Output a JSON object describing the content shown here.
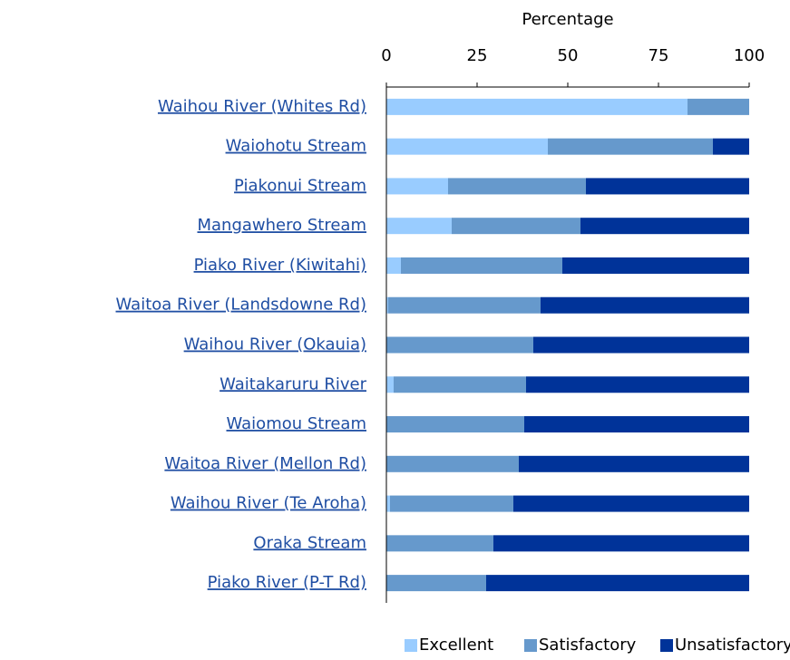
{
  "chart_data": {
    "type": "stacked_bar_horizontal",
    "x_label": "Percentage",
    "categories": [
      "Waihou River (Whites Rd)",
      "Waiohotu Stream",
      "Piakonui Stream",
      "Mangawhero Stream",
      "Piako River (Kiwitahi)",
      "Waitoa River (Landsdowne Rd)",
      "Waihou River (Okauia)",
      "Waitakaruru River",
      "Waiomou Stream",
      "Waitoa River (Mellon Rd)",
      "Waihou River (Te Aroha)",
      "Oraka Stream",
      "Piako River (P-T Rd)"
    ],
    "series": [
      {
        "name": "Excellent",
        "color": "#99ccff",
        "values": [
          83,
          44.5,
          17,
          18,
          4,
          0.5,
          0,
          2,
          0,
          0,
          1,
          0,
          0
        ]
      },
      {
        "name": "Satisfactory",
        "color": "#6699cc",
        "values": [
          17,
          45.5,
          38,
          35.5,
          44.5,
          42,
          40.5,
          36.5,
          38,
          36.5,
          34,
          29.5,
          27.5
        ]
      },
      {
        "name": "Unsatisfactory",
        "color": "#003399",
        "values": [
          0,
          10,
          45,
          46.5,
          51.5,
          57.5,
          59.5,
          61.5,
          62,
          63.5,
          65,
          70.5,
          72.5
        ]
      }
    ],
    "xlim": [
      0,
      100
    ],
    "xticks": [
      0,
      25,
      50,
      75,
      100
    ],
    "legend": "bottom"
  }
}
